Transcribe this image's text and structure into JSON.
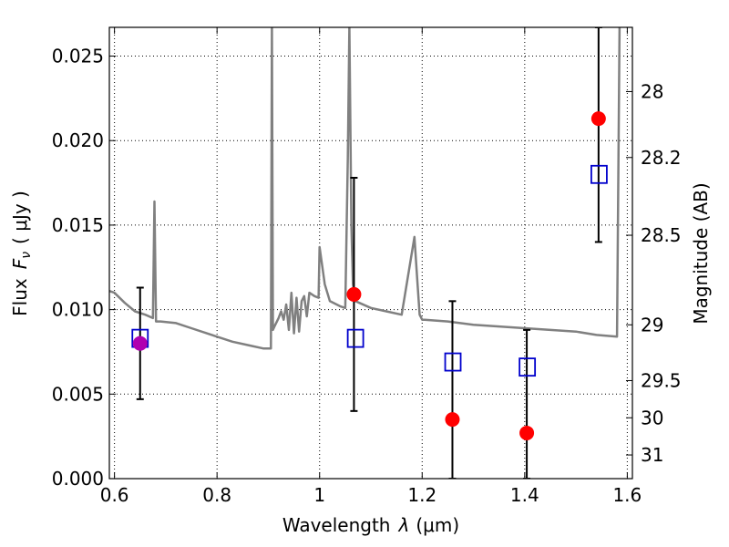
{
  "chart_data": {
    "type": "scatter",
    "xlabel_prefix": "Wavelength",
    "xlabel_symbol": "λ",
    "xlabel_unit": "(μm)",
    "ylabel_prefix": "Flux",
    "ylabel_symbol": "F",
    "ylabel_subscript": "ν",
    "ylabel_unit": "( μJy )",
    "y2label": "Magnitude (AB)",
    "xlim": [
      0.59,
      1.61
    ],
    "ylim": [
      0.0,
      0.0267
    ],
    "xticks": [
      0.6,
      0.8,
      1.0,
      1.2,
      1.4,
      1.6
    ],
    "xticklabels": [
      "0.6",
      "0.8",
      "1",
      "1.2",
      "1.4",
      "1.6"
    ],
    "yticks": [
      0.0,
      0.005,
      0.01,
      0.015,
      0.02,
      0.025
    ],
    "yticklabels": [
      "0.000",
      "0.005",
      "0.010",
      "0.015",
      "0.020",
      "0.025"
    ],
    "y2ticks": [
      {
        "label": "28",
        "flux": 0.0229
      },
      {
        "label": "28.2",
        "flux": 0.019
      },
      {
        "label": "28.5",
        "flux": 0.0144
      },
      {
        "label": "29",
        "flux": 0.0091
      },
      {
        "label": "29.5",
        "flux": 0.0058
      },
      {
        "label": "30",
        "flux": 0.0036
      },
      {
        "label": "31",
        "flux": 0.0014
      }
    ],
    "grid": true,
    "colors": {
      "model": "#808080",
      "observed": "#ff0000",
      "observed_special": "#b000b0",
      "model_band": "#0000cc",
      "errorbar": "#000000"
    },
    "series": [
      {
        "style": "line",
        "x": [
          0.59,
          0.6,
          0.62,
          0.64,
          0.66,
          0.675,
          0.678,
          0.681,
          0.684,
          0.69,
          0.72,
          0.75,
          0.78,
          0.8,
          0.83,
          0.86,
          0.89,
          0.905,
          0.907,
          0.909,
          0.912,
          0.92,
          0.925,
          0.93,
          0.935,
          0.94,
          0.945,
          0.95,
          0.955,
          0.96,
          0.965,
          0.97,
          0.975,
          0.98,
          0.99,
          0.998,
          1.0,
          1.01,
          1.02,
          1.04,
          1.05,
          1.055,
          1.058,
          1.062,
          1.065,
          1.07,
          1.1,
          1.13,
          1.16,
          1.185,
          1.19,
          1.195,
          1.2,
          1.205,
          1.25,
          1.3,
          1.35,
          1.4,
          1.45,
          1.5,
          1.54,
          1.58,
          1.585,
          1.59,
          1.61
        ],
        "y": [
          0.0111,
          0.011,
          0.0104,
          0.0099,
          0.0097,
          0.0095,
          0.0164,
          0.0093,
          0.0093,
          0.0093,
          0.0092,
          0.0089,
          0.0086,
          0.0084,
          0.0081,
          0.0079,
          0.0077,
          0.0077,
          0.0268,
          0.0088,
          0.009,
          0.0095,
          0.0099,
          0.0094,
          0.0103,
          0.0088,
          0.011,
          0.0086,
          0.0107,
          0.0087,
          0.0105,
          0.0108,
          0.0096,
          0.011,
          0.0108,
          0.0107,
          0.0137,
          0.0115,
          0.0105,
          0.0102,
          0.0101,
          0.019,
          0.0268,
          0.015,
          0.0115,
          0.0105,
          0.0101,
          0.0099,
          0.0097,
          0.0143,
          0.012,
          0.0097,
          0.0094,
          0.0094,
          0.0093,
          0.0091,
          0.009,
          0.0089,
          0.0088,
          0.0087,
          0.0085,
          0.0084,
          0.0268,
          0.0268,
          0.0268
        ]
      },
      {
        "style": "points-square",
        "x": [
          0.65,
          1.07,
          1.26,
          1.405,
          1.545
        ],
        "y": [
          0.0083,
          0.0083,
          0.0069,
          0.0066,
          0.018
        ]
      },
      {
        "style": "points-circle",
        "x": [
          0.65,
          1.067,
          1.259,
          1.404,
          1.544
        ],
        "y": [
          0.008,
          0.0109,
          0.0035,
          0.0027,
          0.0213
        ],
        "errlow": [
          0.0047,
          0.004,
          0.0,
          0.0,
          0.014
        ],
        "errhigh": [
          0.0113,
          0.0178,
          0.0105,
          0.0088,
          0.0267
        ]
      }
    ]
  }
}
